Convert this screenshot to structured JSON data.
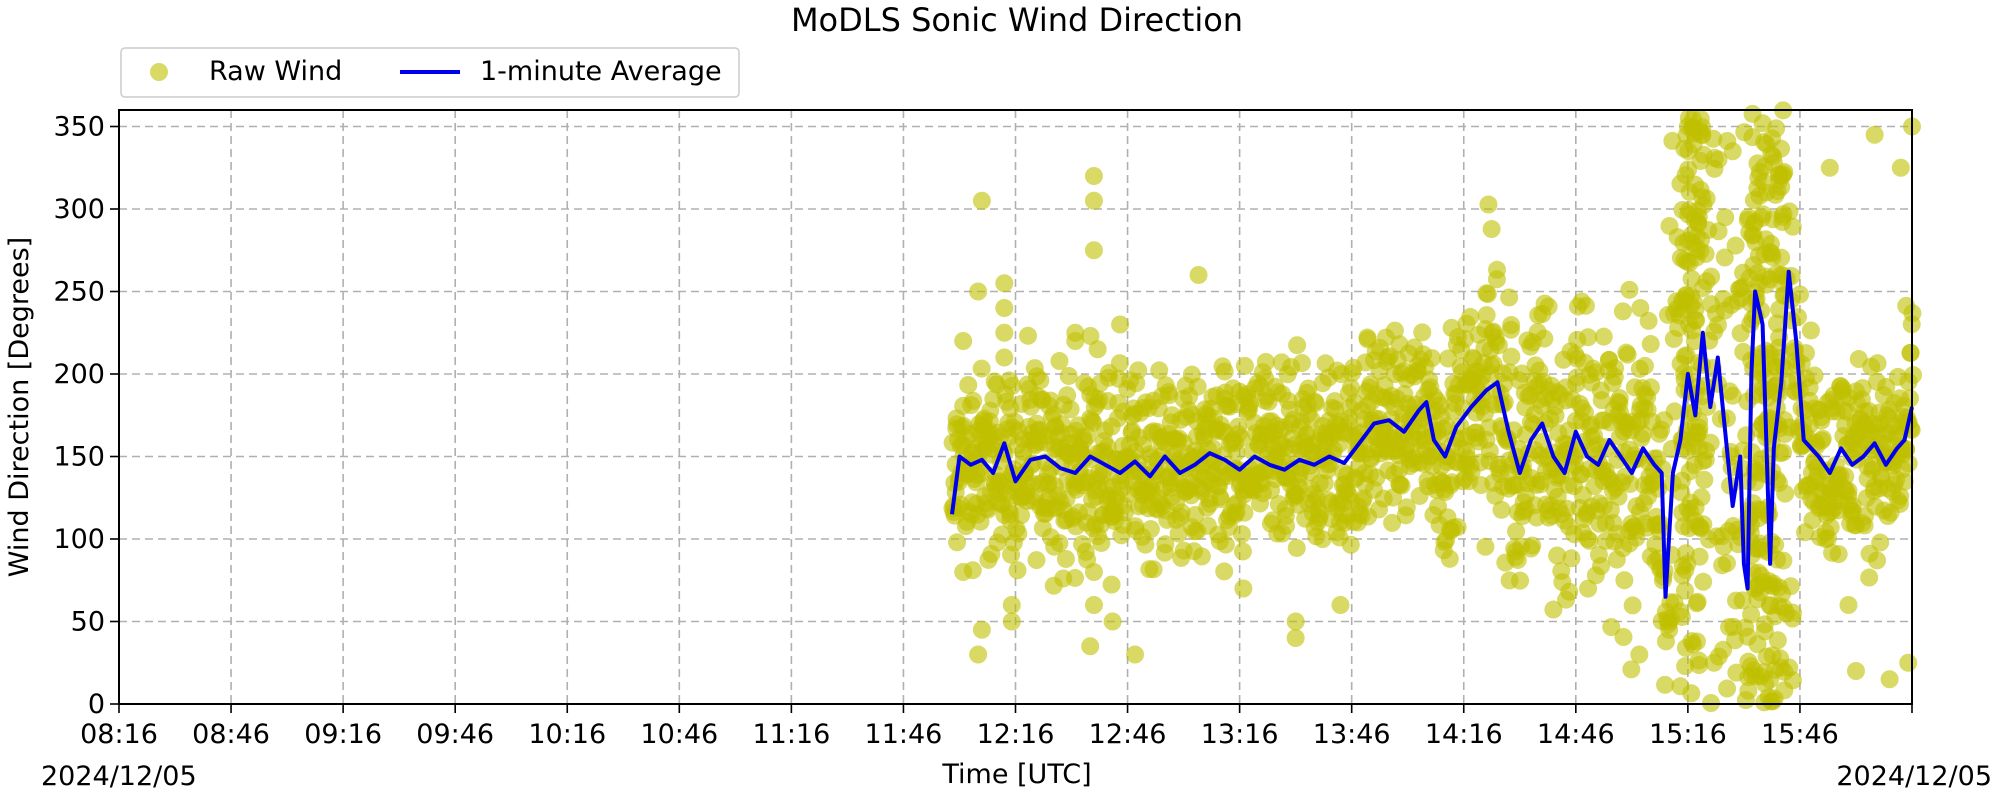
{
  "chart_data": {
    "type": "scatter",
    "title": "MoDLS Sonic Wind Direction",
    "xlabel": "Time [UTC]",
    "ylabel": "Wind Direction [Degrees]",
    "x_date_left": "2024/12/05",
    "x_date_right": "2024/12/05",
    "x_unit": "minutes after 08:16 UTC",
    "xlim": [
      0,
      480
    ],
    "ylim": [
      0,
      360
    ],
    "x_ticks": [
      0,
      30,
      60,
      90,
      120,
      150,
      180,
      210,
      240,
      270,
      300,
      330,
      360,
      390,
      420,
      450
    ],
    "x_tick_labels": [
      "08:16",
      "08:46",
      "09:16",
      "09:46",
      "10:16",
      "10:46",
      "11:16",
      "11:46",
      "12:16",
      "12:46",
      "13:16",
      "13:46",
      "14:16",
      "14:46",
      "15:16",
      "15:46"
    ],
    "y_ticks": [
      0,
      50,
      100,
      150,
      200,
      250,
      300,
      350
    ],
    "y_tick_labels": [
      "0",
      "50",
      "100",
      "150",
      "200",
      "250",
      "300",
      "350"
    ],
    "grid": true,
    "legend_position": "above-left",
    "series": [
      {
        "name": "Raw Wind",
        "kind": "scatter",
        "color": "#bfbf00",
        "x_range": [
          223,
          480
        ],
        "approx_points": [
          [
            226,
            220
          ],
          [
            226,
            80
          ],
          [
            230,
            250
          ],
          [
            230,
            30
          ],
          [
            231,
            305
          ],
          [
            231,
            45
          ],
          [
            237,
            255
          ],
          [
            237,
            240
          ],
          [
            237,
            225
          ],
          [
            237,
            210
          ],
          [
            239,
            60
          ],
          [
            239,
            50
          ],
          [
            256,
            225
          ],
          [
            256,
            220
          ],
          [
            260,
            35
          ],
          [
            261,
            320
          ],
          [
            261,
            305
          ],
          [
            261,
            275
          ],
          [
            261,
            80
          ],
          [
            261,
            60
          ],
          [
            262,
            215
          ],
          [
            266,
            50
          ],
          [
            268,
            230
          ],
          [
            272,
            30
          ],
          [
            289,
            260
          ],
          [
            296,
            185
          ],
          [
            301,
            70
          ],
          [
            315,
            50
          ],
          [
            315,
            40
          ],
          [
            327,
            60
          ],
          [
            385,
            90
          ],
          [
            403,
            75
          ],
          [
            407,
            30
          ],
          [
            415,
            45
          ],
          [
            415,
            50
          ],
          [
            420,
            350
          ],
          [
            427,
            25
          ],
          [
            430,
            295
          ],
          [
            432,
            335
          ],
          [
            441,
            310
          ],
          [
            458,
            325
          ],
          [
            463,
            60
          ],
          [
            465,
            20
          ],
          [
            470,
            345
          ],
          [
            474,
            15
          ],
          [
            477,
            325
          ],
          [
            479,
            25
          ],
          [
            480,
            350
          ]
        ]
      },
      {
        "name": "1-minute Average",
        "kind": "line",
        "color": "#0000ee",
        "approx_points": [
          [
            223,
            115
          ],
          [
            225,
            150
          ],
          [
            228,
            145
          ],
          [
            231,
            148
          ],
          [
            234,
            140
          ],
          [
            237,
            158
          ],
          [
            240,
            135
          ],
          [
            244,
            148
          ],
          [
            248,
            150
          ],
          [
            252,
            143
          ],
          [
            256,
            140
          ],
          [
            260,
            150
          ],
          [
            264,
            145
          ],
          [
            268,
            140
          ],
          [
            272,
            147
          ],
          [
            276,
            138
          ],
          [
            280,
            150
          ],
          [
            284,
            140
          ],
          [
            288,
            145
          ],
          [
            292,
            152
          ],
          [
            296,
            148
          ],
          [
            300,
            142
          ],
          [
            304,
            150
          ],
          [
            308,
            145
          ],
          [
            312,
            142
          ],
          [
            316,
            148
          ],
          [
            320,
            145
          ],
          [
            324,
            150
          ],
          [
            328,
            146
          ],
          [
            332,
            158
          ],
          [
            336,
            170
          ],
          [
            340,
            172
          ],
          [
            344,
            165
          ],
          [
            348,
            178
          ],
          [
            350,
            183
          ],
          [
            352,
            160
          ],
          [
            355,
            150
          ],
          [
            358,
            168
          ],
          [
            362,
            180
          ],
          [
            366,
            190
          ],
          [
            369,
            195
          ],
          [
            372,
            165
          ],
          [
            375,
            140
          ],
          [
            378,
            160
          ],
          [
            381,
            170
          ],
          [
            384,
            150
          ],
          [
            387,
            140
          ],
          [
            390,
            165
          ],
          [
            393,
            150
          ],
          [
            396,
            145
          ],
          [
            399,
            160
          ],
          [
            402,
            150
          ],
          [
            405,
            140
          ],
          [
            408,
            155
          ],
          [
            411,
            145
          ],
          [
            413,
            140
          ],
          [
            414,
            65
          ],
          [
            416,
            140
          ],
          [
            418,
            160
          ],
          [
            420,
            200
          ],
          [
            422,
            175
          ],
          [
            424,
            225
          ],
          [
            426,
            180
          ],
          [
            428,
            210
          ],
          [
            430,
            165
          ],
          [
            432,
            120
          ],
          [
            434,
            150
          ],
          [
            435,
            85
          ],
          [
            436,
            70
          ],
          [
            437,
            200
          ],
          [
            438,
            250
          ],
          [
            440,
            230
          ],
          [
            441,
            160
          ],
          [
            442,
            85
          ],
          [
            443,
            155
          ],
          [
            445,
            195
          ],
          [
            447,
            262
          ],
          [
            449,
            220
          ],
          [
            451,
            160
          ],
          [
            455,
            150
          ],
          [
            458,
            140
          ],
          [
            461,
            155
          ],
          [
            464,
            145
          ],
          [
            467,
            150
          ],
          [
            470,
            158
          ],
          [
            473,
            145
          ],
          [
            476,
            155
          ],
          [
            478,
            160
          ],
          [
            480,
            180
          ]
        ]
      }
    ]
  }
}
